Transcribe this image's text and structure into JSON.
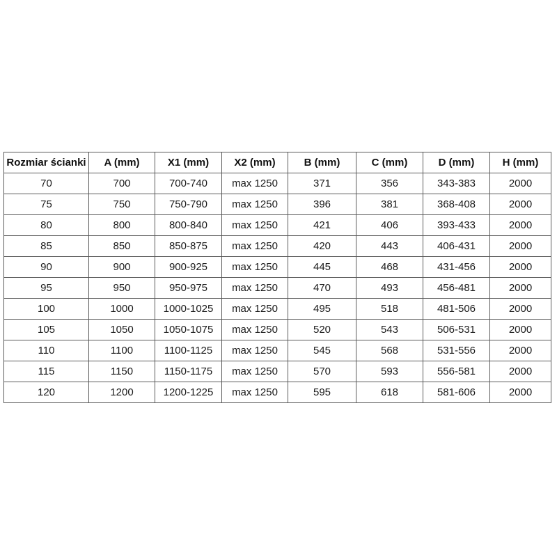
{
  "chart_data": {
    "type": "table",
    "title": "",
    "columns": [
      "Rozmiar ścianki",
      "A (mm)",
      "X1 (mm)",
      "X2 (mm)",
      "B (mm)",
      "C (mm)",
      "D (mm)",
      "H (mm)"
    ],
    "rows": [
      [
        "70",
        "700",
        "700-740",
        "max 1250",
        "371",
        "356",
        "343-383",
        "2000"
      ],
      [
        "75",
        "750",
        "750-790",
        "max 1250",
        "396",
        "381",
        "368-408",
        "2000"
      ],
      [
        "80",
        "800",
        "800-840",
        "max 1250",
        "421",
        "406",
        "393-433",
        "2000"
      ],
      [
        "85",
        "850",
        "850-875",
        "max 1250",
        "420",
        "443",
        "406-431",
        "2000"
      ],
      [
        "90",
        "900",
        "900-925",
        "max 1250",
        "445",
        "468",
        "431-456",
        "2000"
      ],
      [
        "95",
        "950",
        "950-975",
        "max 1250",
        "470",
        "493",
        "456-481",
        "2000"
      ],
      [
        "100",
        "1000",
        "1000-1025",
        "max 1250",
        "495",
        "518",
        "481-506",
        "2000"
      ],
      [
        "105",
        "1050",
        "1050-1075",
        "max 1250",
        "520",
        "543",
        "506-531",
        "2000"
      ],
      [
        "110",
        "1100",
        "1100-1125",
        "max 1250",
        "545",
        "568",
        "531-556",
        "2000"
      ],
      [
        "115",
        "1150",
        "1150-1175",
        "max 1250",
        "570",
        "593",
        "556-581",
        "2000"
      ],
      [
        "120",
        "1200",
        "1200-1225",
        "max 1250",
        "595",
        "618",
        "581-606",
        "2000"
      ]
    ]
  },
  "colors": {
    "background": "#ffffff",
    "table_border": "#595959",
    "text": "#1a1a1a"
  }
}
